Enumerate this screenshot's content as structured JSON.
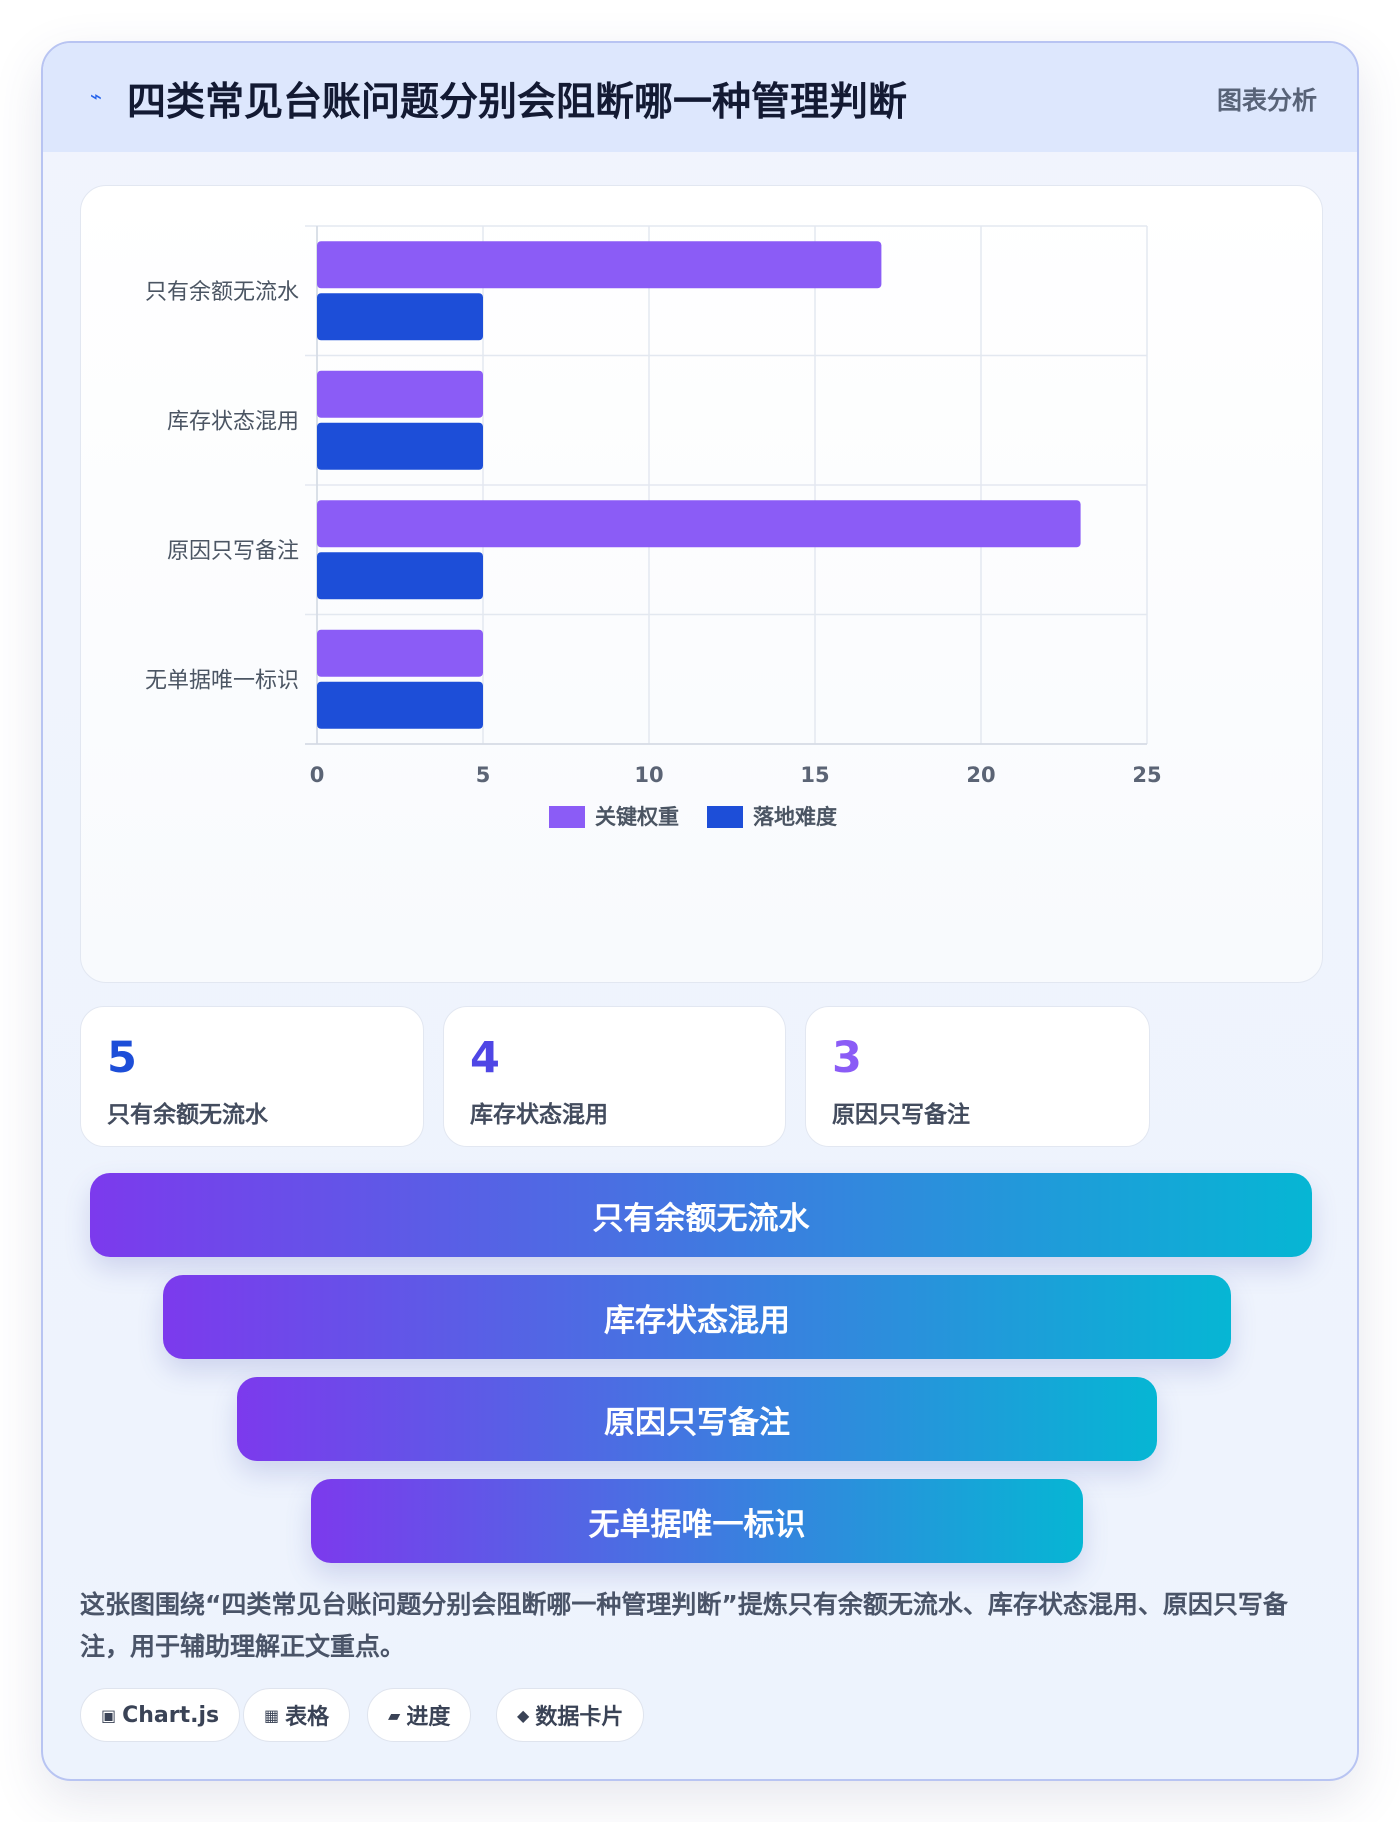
{
  "header": {
    "icon": "lightning-bolt-icon",
    "title": "四类常见台账问题分别会阻断哪一种管理判断",
    "tag": "图表分析"
  },
  "chart_data": {
    "type": "bar",
    "orientation": "horizontal",
    "categories": [
      "只有余额无流水",
      "库存状态混用",
      "原因只写备注",
      "无单据唯一标识"
    ],
    "series": [
      {
        "name": "关键权重",
        "color": "#8b5cf6",
        "values": [
          17,
          5,
          23,
          5
        ]
      },
      {
        "name": "落地难度",
        "color": "#1d4ed8",
        "values": [
          5,
          5,
          5,
          5
        ]
      }
    ],
    "xlim": [
      0,
      25
    ],
    "x_ticks": [
      0,
      5,
      10,
      15,
      20,
      25
    ],
    "grid": true,
    "legend_position": "bottom"
  },
  "stats": [
    {
      "value": "5",
      "label": "只有余额无流水",
      "color": "#1d4ed8"
    },
    {
      "value": "4",
      "label": "库存状态混用",
      "color": "#4f46e5"
    },
    {
      "value": "3",
      "label": "原因只写备注",
      "color": "#8b5cf6"
    }
  ],
  "funnel": [
    "只有余额无流水",
    "库存状态混用",
    "原因只写备注",
    "无单据唯一标识"
  ],
  "summary": "这张图围绕“四类常见台账问题分别会阻断哪一种管理判断”提炼只有余额无流水、库存状态混用、原因只写备注，用于辅助理解正文重点。",
  "chips": [
    {
      "icon": "square-dot-icon",
      "glyph": "▣",
      "label": "Chart.js"
    },
    {
      "icon": "table-grid-icon",
      "glyph": "▦",
      "label": "表格"
    },
    {
      "icon": "progress-bar-icon",
      "glyph": "▰",
      "label": "进度"
    },
    {
      "icon": "diamond-icon",
      "glyph": "◆",
      "label": "数据卡片"
    }
  ]
}
